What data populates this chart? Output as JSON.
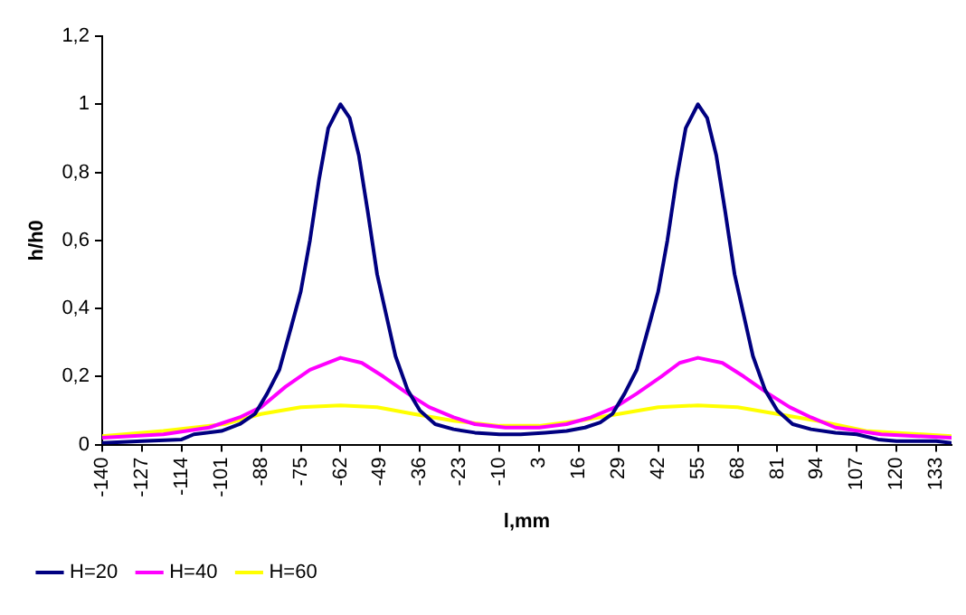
{
  "chart_data": {
    "type": "line",
    "xlabel": "l,mm",
    "ylabel": "h/h0",
    "xlim": [
      -140,
      138
    ],
    "xticks": [
      -140,
      -127,
      -114,
      -101,
      -88,
      -75,
      -62,
      -49,
      -36,
      -23,
      -10,
      3,
      16,
      29,
      42,
      55,
      68,
      81,
      94,
      107,
      120,
      133
    ],
    "ylim": [
      0,
      1.2
    ],
    "yticks": [
      0,
      {
        "value": 0.2,
        "label": "0,2"
      },
      {
        "value": 0.4,
        "label": "0,4"
      },
      {
        "value": 0.6,
        "label": "0,6"
      },
      {
        "value": 0.8,
        "label": "0,8"
      },
      1,
      {
        "value": 1.2,
        "label": "1,2"
      }
    ],
    "grid": false,
    "legend": "bottom left",
    "marker": "none",
    "line_style": "solid",
    "series": [
      {
        "name": "H=20",
        "color": "#000080",
        "x": [
          -140,
          -127,
          -114,
          -110,
          -101,
          -95,
          -90,
          -86,
          -82,
          -78,
          -75,
          -72,
          -69,
          -66,
          -62,
          -59,
          -56,
          -53,
          -50,
          -47,
          -44,
          -40,
          -36,
          -31,
          -25,
          -18,
          -10,
          -3,
          5,
          12,
          18,
          23,
          27,
          31,
          35,
          39,
          42,
          45,
          48,
          51,
          55,
          58,
          61,
          64,
          67,
          70,
          73,
          77,
          81,
          86,
          92,
          100,
          107,
          114,
          120,
          133,
          138
        ],
        "values": [
          0.005,
          0.01,
          0.015,
          0.03,
          0.04,
          0.06,
          0.09,
          0.15,
          0.22,
          0.35,
          0.45,
          0.6,
          0.78,
          0.93,
          1.0,
          0.96,
          0.85,
          0.68,
          0.5,
          0.38,
          0.26,
          0.16,
          0.1,
          0.06,
          0.045,
          0.035,
          0.03,
          0.03,
          0.035,
          0.04,
          0.05,
          0.065,
          0.09,
          0.15,
          0.22,
          0.35,
          0.45,
          0.6,
          0.78,
          0.93,
          1.0,
          0.96,
          0.85,
          0.68,
          0.5,
          0.38,
          0.26,
          0.16,
          0.1,
          0.06,
          0.045,
          0.035,
          0.03,
          0.015,
          0.01,
          0.01,
          0.005
        ]
      },
      {
        "name": "H=40",
        "color": "#ff00ff",
        "x": [
          -140,
          -120,
          -105,
          -95,
          -88,
          -80,
          -72,
          -62,
          -55,
          -48,
          -40,
          -33,
          -25,
          -18,
          -8,
          3,
          12,
          20,
          28,
          35,
          43,
          49,
          55,
          63,
          70,
          78,
          85,
          92,
          100,
          115,
          138
        ],
        "values": [
          0.02,
          0.03,
          0.05,
          0.08,
          0.11,
          0.17,
          0.22,
          0.255,
          0.24,
          0.2,
          0.15,
          0.11,
          0.08,
          0.06,
          0.05,
          0.05,
          0.06,
          0.08,
          0.11,
          0.15,
          0.2,
          0.24,
          0.255,
          0.24,
          0.2,
          0.15,
          0.11,
          0.08,
          0.05,
          0.03,
          0.02
        ]
      },
      {
        "name": "H=60",
        "color": "#ffff00",
        "x": [
          -140,
          -120,
          -100,
          -88,
          -75,
          -62,
          -50,
          -38,
          -25,
          -10,
          3,
          16,
          29,
          42,
          55,
          68,
          81,
          94,
          110,
          138
        ],
        "values": [
          0.025,
          0.04,
          0.06,
          0.09,
          0.11,
          0.115,
          0.11,
          0.09,
          0.07,
          0.055,
          0.055,
          0.07,
          0.09,
          0.11,
          0.115,
          0.11,
          0.09,
          0.07,
          0.04,
          0.025
        ]
      }
    ]
  }
}
